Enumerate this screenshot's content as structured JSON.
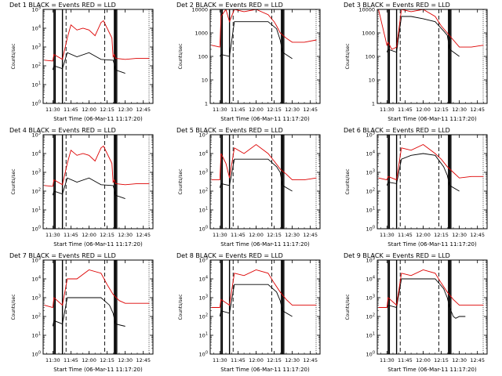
{
  "colors": {
    "events": "#000000",
    "lld": "#dd0000"
  },
  "chart_data": [
    {
      "type": "line",
      "title": "Det 1  BLACK = Events  RED = LLD",
      "xlabel": "Start Time (06-Mar-11 11:17:20)",
      "ylabel": "Counts/sec",
      "xlim": [
        "11:22",
        "12:53"
      ],
      "ylim": [
        1,
        100000
      ],
      "yscale": "log",
      "x_ticks": [
        "11:30",
        "11:45",
        "12:00",
        "12:15",
        "12:30",
        "12:45"
      ],
      "y_ticks": [
        "10^0",
        "10^1",
        "10^2",
        "10^3",
        "10^4",
        "10^5"
      ],
      "solid_markers": [
        "11:31",
        "11:32",
        "11:38",
        "12:21",
        "12:22",
        "12:23"
      ],
      "dashed_markers": [
        "11:41",
        "12:13"
      ],
      "grid": false,
      "series": [
        {
          "name": "Events",
          "x": [
            "11:30",
            "11:31",
            "11:38",
            "11:42",
            "11:50",
            "12:00",
            "12:10",
            "12:19",
            "12:20",
            "12:21",
            "12:22",
            "12:30"
          ],
          "y": [
            60,
            100,
            70,
            500,
            300,
            500,
            220,
            200,
            200,
            120,
            60,
            40
          ]
        },
        {
          "name": "LLD",
          "x": [
            "11:23",
            "11:30",
            "11:31",
            "11:38",
            "11:42",
            "11:45",
            "11:50",
            "11:55",
            "12:00",
            "12:05",
            "12:10",
            "12:12",
            "12:19",
            "12:20",
            "12:21",
            "12:22",
            "12:30",
            "12:40",
            "12:50"
          ],
          "y": [
            200,
            180,
            400,
            220,
            3000,
            15000,
            8000,
            10000,
            8000,
            4000,
            20000,
            25000,
            3000,
            300,
            400,
            250,
            220,
            250,
            250
          ]
        }
      ]
    },
    {
      "type": "line",
      "title": "Det 2  BLACK = Events  RED = LLD",
      "xlabel": "Start Time (06-Mar-11 11:17:20)",
      "ylabel": "Counts/sec",
      "xlim": [
        "11:22",
        "12:53"
      ],
      "ylim": [
        1,
        10000
      ],
      "yscale": "log",
      "x_ticks": [
        "11:30",
        "11:45",
        "12:00",
        "12:15",
        "12:30",
        "12:45"
      ],
      "y_ticks": [
        "1",
        "10",
        "100",
        "1000",
        "10000"
      ],
      "solid_markers": [
        "11:31",
        "11:32",
        "11:38",
        "12:21",
        "12:22",
        "12:23"
      ],
      "dashed_markers": [
        "11:41",
        "12:13"
      ],
      "grid": false,
      "series": [
        {
          "name": "Events",
          "x": [
            "11:30",
            "11:31",
            "11:38",
            "11:42",
            "11:50",
            "12:00",
            "12:10",
            "12:17",
            "12:20",
            "12:22",
            "12:30"
          ],
          "y": [
            100,
            120,
            100,
            3000,
            3000,
            3000,
            3000,
            1500,
            500,
            150,
            80
          ]
        },
        {
          "name": "LLD",
          "x": [
            "11:23",
            "11:30",
            "11:31",
            "11:35",
            "11:38",
            "11:42",
            "11:50",
            "12:00",
            "12:10",
            "12:15",
            "12:17",
            "12:20",
            "12:25",
            "12:30",
            "12:40",
            "12:50"
          ],
          "y": [
            300,
            250,
            5000,
            10000,
            3000,
            10000,
            8000,
            10000,
            6000,
            3000,
            2000,
            1000,
            600,
            400,
            400,
            500
          ]
        }
      ]
    },
    {
      "type": "line",
      "title": "Det 3  BLACK = Events  RED = LLD",
      "xlabel": "Start Time (06-Mar-11 11:17:20)",
      "ylabel": "Counts/sec",
      "xlim": [
        "11:22",
        "12:53"
      ],
      "ylim": [
        1,
        10000
      ],
      "yscale": "log",
      "x_ticks": [
        "11:30",
        "11:45",
        "12:00",
        "12:15",
        "12:30",
        "12:45"
      ],
      "y_ticks": [
        "1",
        "10",
        "100",
        "1000",
        "10000"
      ],
      "solid_markers": [
        "11:31",
        "11:32",
        "11:38",
        "12:21",
        "12:22",
        "12:23"
      ],
      "dashed_markers": [
        "11:41",
        "12:13"
      ],
      "grid": false,
      "series": [
        {
          "name": "Events",
          "x": [
            "11:30",
            "11:31",
            "11:38",
            "11:42",
            "11:50",
            "12:00",
            "12:10",
            "12:17",
            "12:20",
            "12:22",
            "12:30"
          ],
          "y": [
            150,
            200,
            150,
            5000,
            5000,
            4000,
            3000,
            1200,
            800,
            200,
            100
          ]
        },
        {
          "name": "LLD",
          "x": [
            "11:23",
            "11:30",
            "11:31",
            "11:34",
            "11:38",
            "11:42",
            "11:50",
            "12:00",
            "12:10",
            "12:15",
            "12:20",
            "12:25",
            "12:30",
            "12:40",
            "12:50"
          ],
          "y": [
            10000,
            300,
            400,
            200,
            250,
            10000,
            8000,
            10000,
            5000,
            2000,
            1000,
            500,
            250,
            250,
            300
          ]
        }
      ]
    },
    {
      "type": "line",
      "title": "Det 4  BLACK = Events  RED = LLD",
      "xlabel": "Start Time (06-Mar-11 11:17:20)",
      "ylabel": "Counts/sec",
      "xlim": [
        "11:22",
        "12:53"
      ],
      "ylim": [
        1,
        100000
      ],
      "yscale": "log",
      "x_ticks": [
        "11:30",
        "11:45",
        "12:00",
        "12:15",
        "12:30",
        "12:45"
      ],
      "y_ticks": [
        "10^0",
        "10^1",
        "10^2",
        "10^3",
        "10^4",
        "10^5"
      ],
      "solid_markers": [
        "11:31",
        "11:32",
        "11:38",
        "12:21",
        "12:22",
        "12:23"
      ],
      "dashed_markers": [
        "11:41",
        "12:13"
      ],
      "grid": false,
      "series": [
        {
          "name": "Events",
          "x": [
            "11:30",
            "11:31",
            "11:38",
            "11:42",
            "11:50",
            "12:00",
            "12:10",
            "12:19",
            "12:20",
            "12:21",
            "12:22",
            "12:30"
          ],
          "y": [
            60,
            100,
            70,
            500,
            300,
            500,
            220,
            200,
            200,
            120,
            60,
            40
          ]
        },
        {
          "name": "LLD",
          "x": [
            "11:23",
            "11:30",
            "11:31",
            "11:38",
            "11:42",
            "11:45",
            "11:50",
            "11:55",
            "12:00",
            "12:05",
            "12:10",
            "12:12",
            "12:19",
            "12:20",
            "12:21",
            "12:22",
            "12:30",
            "12:40",
            "12:50"
          ],
          "y": [
            200,
            180,
            400,
            220,
            3000,
            15000,
            8000,
            10000,
            8000,
            4000,
            20000,
            25000,
            3000,
            300,
            400,
            250,
            220,
            250,
            250
          ]
        }
      ]
    },
    {
      "type": "line",
      "title": "Det 5  BLACK = Events  RED = LLD",
      "xlabel": "Start Time (06-Mar-11 11:17:20)",
      "ylabel": "Counts/sec",
      "xlim": [
        "11:22",
        "12:53"
      ],
      "ylim": [
        1,
        100000
      ],
      "yscale": "log",
      "x_ticks": [
        "11:30",
        "11:45",
        "12:00",
        "12:15",
        "12:30",
        "12:45"
      ],
      "y_ticks": [
        "10^0",
        "10^1",
        "10^2",
        "10^3",
        "10^4",
        "10^5"
      ],
      "solid_markers": [
        "11:31",
        "11:32",
        "11:38",
        "12:21",
        "12:22",
        "12:23"
      ],
      "dashed_markers": [
        "11:41",
        "12:13"
      ],
      "grid": false,
      "series": [
        {
          "name": "Events",
          "x": [
            "11:30",
            "11:31",
            "11:38",
            "11:42",
            "11:50",
            "12:00",
            "12:10",
            "12:17",
            "12:20",
            "12:22",
            "12:30"
          ],
          "y": [
            150,
            250,
            200,
            5000,
            5000,
            5000,
            5000,
            2000,
            1000,
            200,
            100
          ]
        },
        {
          "name": "LLD",
          "x": [
            "11:23",
            "11:30",
            "11:31",
            "11:35",
            "11:38",
            "11:42",
            "11:50",
            "12:00",
            "12:10",
            "12:15",
            "12:20",
            "12:25",
            "12:30",
            "12:40",
            "12:50"
          ],
          "y": [
            400,
            400,
            10000,
            3000,
            500,
            20000,
            10000,
            30000,
            10000,
            4000,
            1500,
            800,
            400,
            400,
            500
          ]
        }
      ]
    },
    {
      "type": "line",
      "title": "Det 6  BLACK = Events  RED = LLD",
      "xlabel": "Start Time (06-Mar-11 11:17:20)",
      "ylabel": "Counts/sec",
      "xlim": [
        "11:22",
        "12:53"
      ],
      "ylim": [
        1,
        100000
      ],
      "yscale": "log",
      "x_ticks": [
        "11:30",
        "11:45",
        "12:00",
        "12:15",
        "12:30",
        "12:45"
      ],
      "y_ticks": [
        "10^0",
        "10^1",
        "10^2",
        "10^3",
        "10^4",
        "10^5"
      ],
      "solid_markers": [
        "11:31",
        "11:32",
        "11:38",
        "12:21",
        "12:22",
        "12:23"
      ],
      "dashed_markers": [
        "11:41",
        "12:13"
      ],
      "grid": false,
      "series": [
        {
          "name": "Events",
          "x": [
            "11:30",
            "11:31",
            "11:38",
            "11:42",
            "11:50",
            "12:00",
            "12:10",
            "12:17",
            "12:20",
            "12:22",
            "12:30"
          ],
          "y": [
            200,
            300,
            250,
            5000,
            8000,
            10000,
            8000,
            2000,
            700,
            200,
            100
          ]
        },
        {
          "name": "LLD",
          "x": [
            "11:23",
            "11:30",
            "11:31",
            "11:38",
            "11:42",
            "11:50",
            "12:00",
            "12:10",
            "12:15",
            "12:20",
            "12:25",
            "12:30",
            "12:40",
            "12:50"
          ],
          "y": [
            500,
            400,
            600,
            400,
            20000,
            15000,
            30000,
            10000,
            5000,
            2000,
            1000,
            500,
            600,
            600
          ]
        }
      ]
    },
    {
      "type": "line",
      "title": "Det 7  BLACK = Events  RED = LLD",
      "xlabel": "Start Time (06-Mar-11 11:17:20)",
      "ylabel": "Counts/sec",
      "xlim": [
        "11:22",
        "12:53"
      ],
      "ylim": [
        1,
        100000
      ],
      "yscale": "log",
      "x_ticks": [
        "11:30",
        "11:45",
        "12:00",
        "12:15",
        "12:30",
        "12:45"
      ],
      "y_ticks": [
        "10^0",
        "10^1",
        "10^2",
        "10^3",
        "10^4",
        "10^5"
      ],
      "solid_markers": [
        "11:31",
        "11:32",
        "11:38",
        "12:21",
        "12:22",
        "12:23"
      ],
      "dashed_markers": [
        "11:41",
        "12:13"
      ],
      "grid": false,
      "series": [
        {
          "name": "Events",
          "x": [
            "11:30",
            "11:31",
            "11:38",
            "11:42",
            "11:50",
            "12:00",
            "12:10",
            "12:17",
            "12:20",
            "12:22",
            "12:30"
          ],
          "y": [
            30,
            60,
            40,
            1000,
            1000,
            1000,
            1000,
            400,
            150,
            40,
            30
          ]
        },
        {
          "name": "LLD",
          "x": [
            "11:23",
            "11:30",
            "11:31",
            "11:38",
            "11:42",
            "11:50",
            "12:00",
            "12:10",
            "12:15",
            "12:20",
            "12:25",
            "12:30",
            "12:40",
            "12:50"
          ],
          "y": [
            400,
            300,
            1000,
            400,
            10000,
            10000,
            30000,
            20000,
            5000,
            1500,
            700,
            500,
            500,
            500
          ]
        }
      ]
    },
    {
      "type": "line",
      "title": "Det 8  BLACK = Events  RED = LLD",
      "xlabel": "Start Time (06-Mar-11 11:17:20)",
      "ylabel": "Counts/sec",
      "xlim": [
        "11:22",
        "12:53"
      ],
      "ylim": [
        1,
        100000
      ],
      "yscale": "log",
      "x_ticks": [
        "11:30",
        "11:45",
        "12:00",
        "12:15",
        "12:30",
        "12:45"
      ],
      "y_ticks": [
        "10^0",
        "10^1",
        "10^2",
        "10^3",
        "10^4",
        "10^5"
      ],
      "solid_markers": [
        "11:31",
        "11:32",
        "11:38",
        "12:21",
        "12:22",
        "12:23"
      ],
      "dashed_markers": [
        "11:41",
        "12:13"
      ],
      "grid": false,
      "series": [
        {
          "name": "Events",
          "x": [
            "11:30",
            "11:31",
            "11:38",
            "11:42",
            "11:50",
            "12:00",
            "12:10",
            "12:17",
            "12:20",
            "12:22",
            "12:30"
          ],
          "y": [
            100,
            200,
            150,
            5000,
            5000,
            5000,
            5000,
            2000,
            700,
            200,
            100
          ]
        },
        {
          "name": "LLD",
          "x": [
            "11:23",
            "11:30",
            "11:31",
            "11:38",
            "11:42",
            "11:50",
            "12:00",
            "12:10",
            "12:15",
            "12:20",
            "12:25",
            "12:30",
            "12:40",
            "12:50"
          ],
          "y": [
            300,
            300,
            800,
            400,
            20000,
            15000,
            30000,
            20000,
            6000,
            2000,
            800,
            400,
            400,
            400
          ]
        }
      ]
    },
    {
      "type": "line",
      "title": "Det 9  BLACK = Events  RED = LLD",
      "xlabel": "Start Time (06-Mar-11 11:17:20)",
      "ylabel": "Counts/sec",
      "xlim": [
        "11:22",
        "12:53"
      ],
      "ylim": [
        1,
        100000
      ],
      "yscale": "log",
      "x_ticks": [
        "11:30",
        "11:45",
        "12:00",
        "12:15",
        "12:30",
        "12:45"
      ],
      "y_ticks": [
        "10^0",
        "10^1",
        "10^2",
        "10^3",
        "10^4",
        "10^5"
      ],
      "solid_markers": [
        "11:31",
        "11:32",
        "11:38",
        "12:21",
        "12:22",
        "12:23"
      ],
      "dashed_markers": [
        "11:41",
        "12:13"
      ],
      "grid": false,
      "series": [
        {
          "name": "Events",
          "x": [
            "11:30",
            "11:31",
            "11:38",
            "11:42",
            "11:50",
            "12:00",
            "12:10",
            "12:17",
            "12:20",
            "12:22",
            "12:25",
            "12:27",
            "12:30",
            "12:35"
          ],
          "y": [
            300,
            400,
            300,
            10000,
            10000,
            10000,
            10000,
            3000,
            1000,
            300,
            100,
            80,
            100,
            100
          ]
        },
        {
          "name": "LLD",
          "x": [
            "11:23",
            "11:30",
            "11:31",
            "11:38",
            "11:42",
            "11:50",
            "12:00",
            "12:10",
            "12:15",
            "12:20",
            "12:25",
            "12:30",
            "12:40",
            "12:50"
          ],
          "y": [
            300,
            300,
            1000,
            400,
            20000,
            15000,
            30000,
            20000,
            6000,
            2000,
            800,
            400,
            400,
            400
          ]
        }
      ]
    }
  ]
}
